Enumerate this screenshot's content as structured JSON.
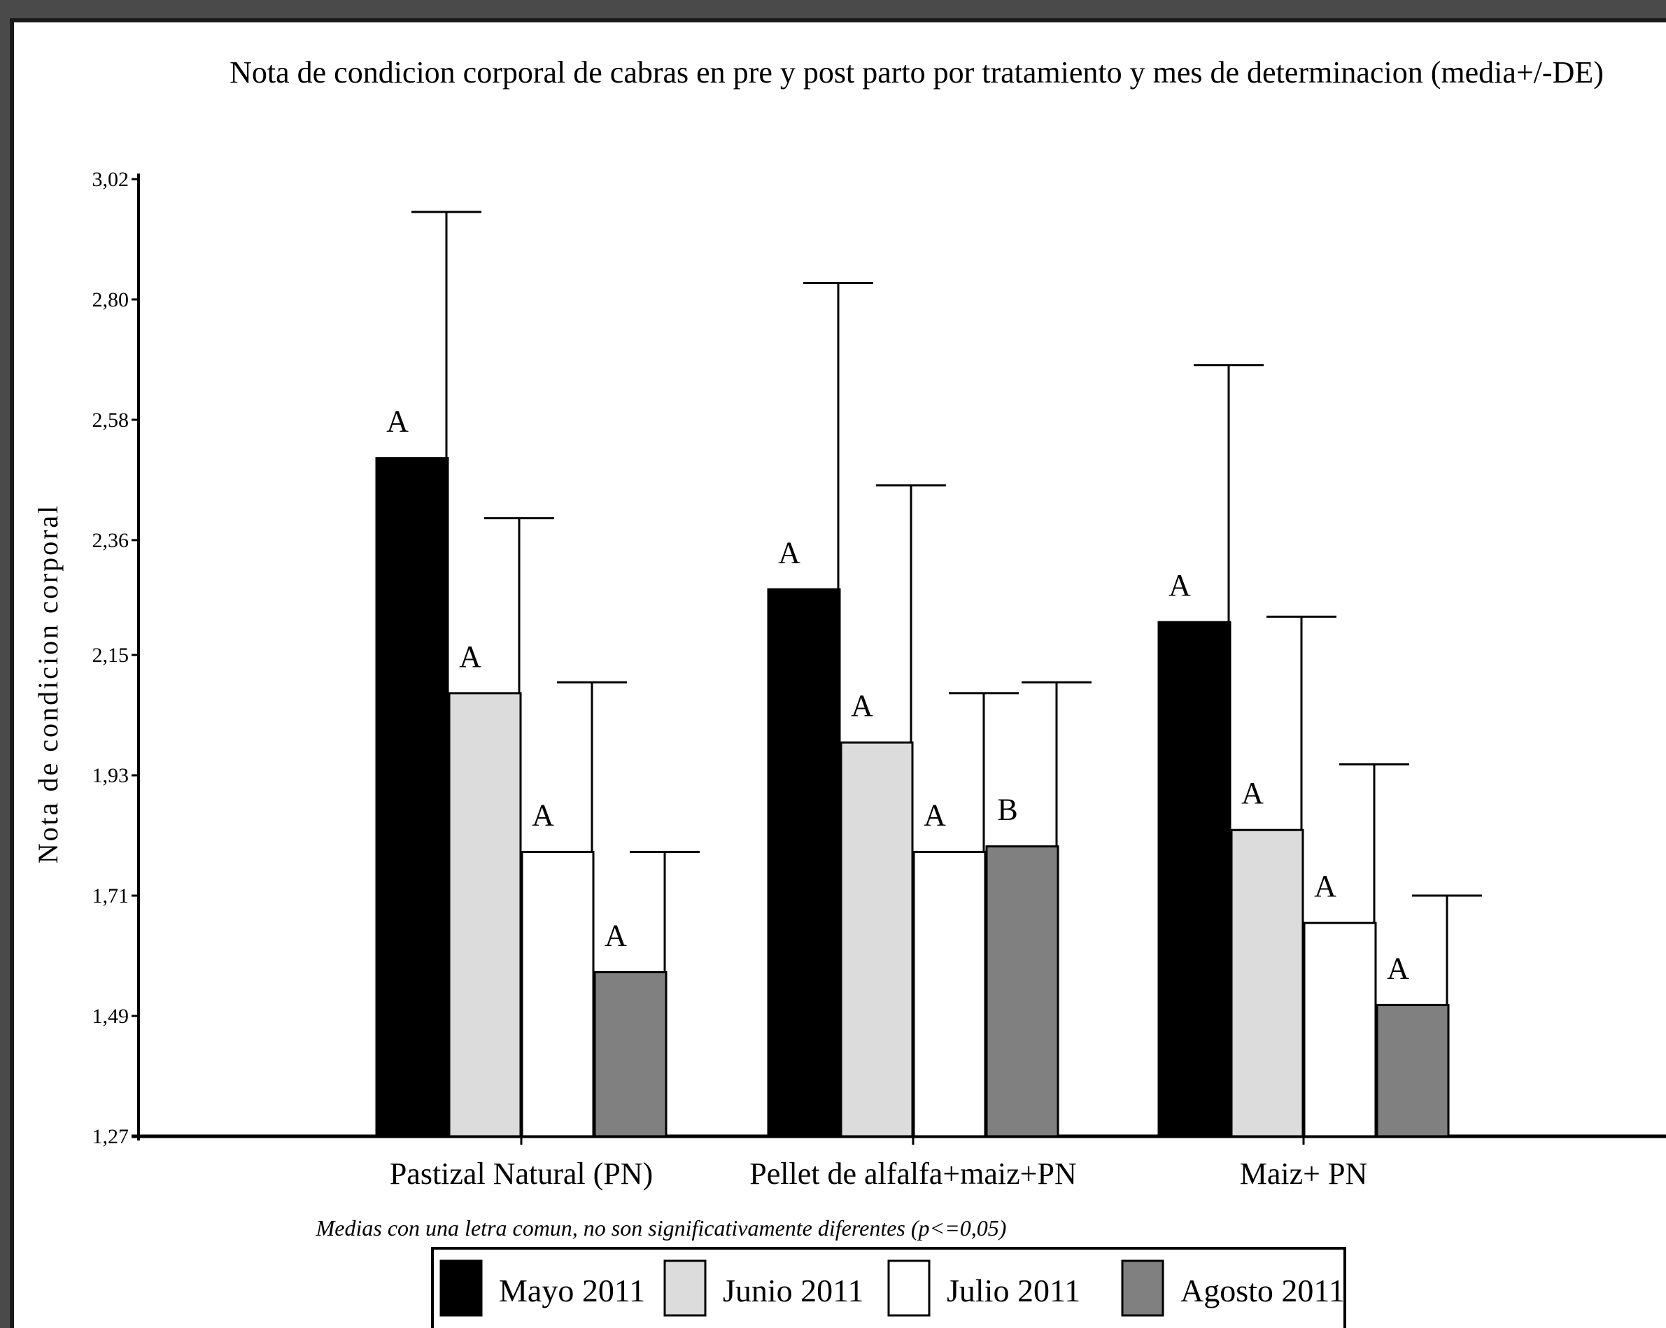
{
  "chart_data": {
    "type": "bar",
    "title": "Nota de condicion corporal de cabras en pre y post parto por tratamiento y mes de determinacion (media+/-DE)",
    "ylabel": "Nota de condicion corporal",
    "xlabel": "",
    "ylim": [
      1.27,
      3.02
    ],
    "yticks": [
      "3,02",
      "2,80",
      "2,58",
      "2,36",
      "2,15",
      "1,93",
      "1,71",
      "1,49",
      "1,27"
    ],
    "ytick_values": [
      3.02,
      2.8,
      2.58,
      2.36,
      2.15,
      1.93,
      1.71,
      1.49,
      1.27
    ],
    "categories": [
      "Pastizal Natural (PN)",
      "Pellet de alfalfa+maiz+PN",
      "Maiz+ PN"
    ],
    "series": [
      {
        "name": "Mayo 2011",
        "color": "#000000",
        "values": [
          2.51,
          2.27,
          2.21
        ],
        "error_upper": [
          2.96,
          2.83,
          2.68
        ],
        "letters": [
          "A",
          "A",
          "A"
        ]
      },
      {
        "name": "Junio 2011",
        "color": "#dcdcdc",
        "values": [
          2.08,
          1.99,
          1.83
        ],
        "error_upper": [
          2.4,
          2.46,
          2.22
        ],
        "letters": [
          "A",
          "A",
          "A"
        ]
      },
      {
        "name": "Julio 2011",
        "color": "#ffffff",
        "values": [
          1.79,
          1.79,
          1.66
        ],
        "error_upper": [
          2.1,
          2.08,
          1.95
        ],
        "letters": [
          "A",
          "A",
          "A"
        ]
      },
      {
        "name": "Agosto 2011",
        "color": "#808080",
        "values": [
          1.57,
          1.8,
          1.51
        ],
        "error_upper": [
          1.79,
          2.1,
          1.71
        ],
        "letters": [
          "A",
          "B",
          "A"
        ]
      }
    ],
    "note": "Medias con una letra comun, no son significativamente diferentes (p<=0,05)",
    "legend_position": "bottom",
    "grid": false
  }
}
